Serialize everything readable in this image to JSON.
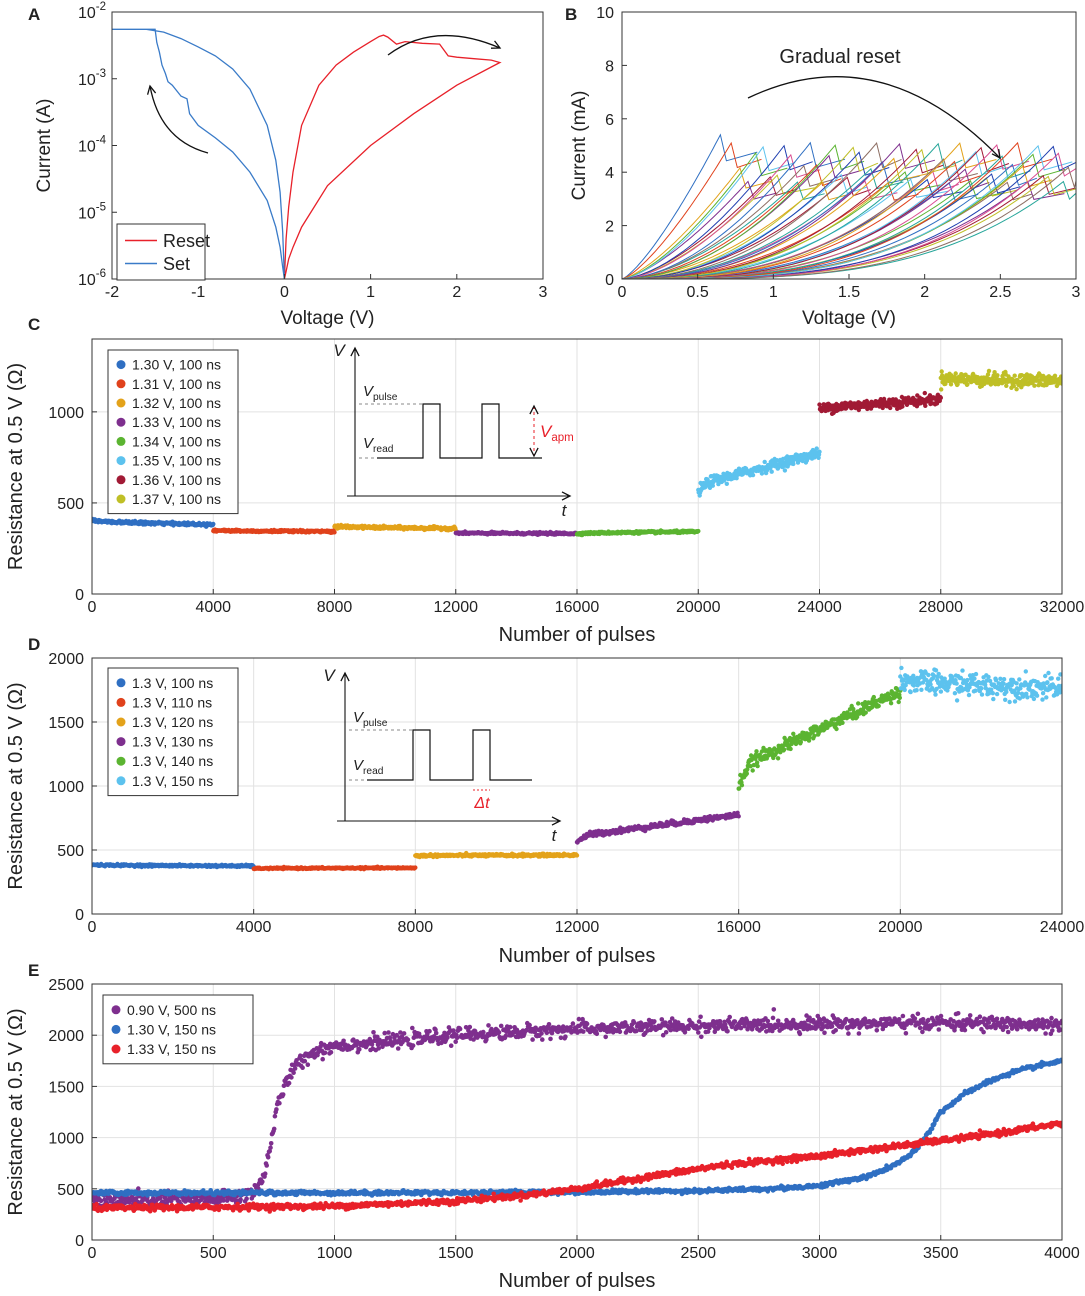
{
  "chart_data": [
    {
      "panel": "A",
      "type": "line",
      "xlabel": "Voltage (V)",
      "ylabel": "Current (A)",
      "xlim": [
        -2,
        3
      ],
      "ylim": [
        1e-06,
        0.01
      ],
      "yscale": "log",
      "xticks": [
        -2,
        -1,
        0,
        1,
        2,
        3
      ],
      "yticks": [
        1e-06,
        1e-05,
        0.0001,
        0.001,
        0.01
      ],
      "ytick_labels": [
        {
          "base": "10",
          "exp": "-6"
        },
        {
          "base": "10",
          "exp": "-5"
        },
        {
          "base": "10",
          "exp": "-4"
        },
        {
          "base": "10",
          "exp": "-3"
        },
        {
          "base": "10",
          "exp": "-2"
        }
      ],
      "legend": [
        {
          "name": "Reset",
          "color": "#e8212a"
        },
        {
          "name": "Set",
          "color": "#3a7bc8"
        }
      ],
      "series": [
        {
          "name": "Reset",
          "color": "#e8212a",
          "x": [
            0,
            0.02,
            0.05,
            0.1,
            0.2,
            0.4,
            0.6,
            0.8,
            1.0,
            1.1,
            1.15,
            1.2,
            1.3,
            1.4,
            1.6,
            1.8,
            1.9,
            2.0,
            2.2,
            2.4,
            2.5,
            2.4,
            2.0,
            1.5,
            1.0,
            0.5,
            0.2,
            0.1,
            0.05,
            0.02,
            0
          ],
          "y": [
            1e-06,
            4e-06,
            1.2e-05,
            4e-05,
            0.0002,
            0.0008,
            0.0016,
            0.0025,
            0.0036,
            0.0043,
            0.0045,
            0.0042,
            0.0033,
            0.0036,
            0.0034,
            0.0033,
            0.0022,
            0.0021,
            0.002,
            0.0019,
            0.00175,
            0.0015,
            0.0008,
            0.0003,
            0.0001,
            2.5e-05,
            6e-06,
            3e-06,
            2e-06,
            1.3e-06,
            1e-06
          ]
        },
        {
          "name": "Set",
          "color": "#3a7bc8",
          "x": [
            0,
            -0.02,
            -0.05,
            -0.1,
            -0.2,
            -0.4,
            -0.6,
            -0.8,
            -1.0,
            -1.1,
            -1.13,
            -1.2,
            -1.3,
            -1.35,
            -1.38,
            -1.42,
            -1.45,
            -1.48,
            -1.5,
            -1.6,
            -1.8,
            -2.0,
            -1.8,
            -1.6,
            -1.4,
            -1.2,
            -1.0,
            -0.8,
            -0.6,
            -0.4,
            -0.2,
            -0.1,
            -0.05,
            -0.02,
            0
          ],
          "y": [
            1e-06,
            1.5e-06,
            3e-06,
            6e-06,
            1.5e-05,
            4e-05,
            8e-05,
            0.00013,
            0.0002,
            0.0003,
            0.0005,
            0.00055,
            0.0008,
            0.0009,
            0.0012,
            0.0016,
            0.0025,
            0.0035,
            0.0055,
            0.0055,
            0.0055,
            0.0055,
            0.0055,
            0.0055,
            0.005,
            0.004,
            0.003,
            0.0022,
            0.0014,
            0.0007,
            0.0002,
            6e-05,
            2e-05,
            5e-06,
            1e-06
          ]
        }
      ],
      "annotations": []
    },
    {
      "panel": "B",
      "type": "line",
      "xlabel": "Voltage (V)",
      "ylabel": "Current (mA)",
      "xlim": [
        0,
        3
      ],
      "ylim": [
        0,
        10
      ],
      "xticks": [
        0,
        0.5,
        1,
        1.5,
        2,
        2.5,
        3
      ],
      "xtick_labels": [
        "0",
        "0.5",
        "1",
        "1.5",
        "2",
        "2.5",
        "3"
      ],
      "yticks": [
        0,
        2,
        4,
        6,
        8,
        10
      ],
      "ytick_labels": [
        "0",
        "2",
        "4",
        "6",
        "8",
        "10"
      ],
      "family": {
        "count": 60,
        "peak_v_first": 0.65,
        "peak_v_last": 2.95,
        "peak_i_first": 5.4,
        "peak_i_range": [
          3.6,
          5.1
        ],
        "exponent_range": [
          1.3,
          3.6
        ]
      },
      "annotations": [
        {
          "text": "Gradual reset"
        }
      ]
    },
    {
      "panel": "C",
      "type": "scatter",
      "xlabel": "Number of pulses",
      "ylabel": "Resistance at 0.5 V (Ω)",
      "xlim": [
        0,
        32000
      ],
      "ylim": [
        0,
        1400
      ],
      "xticks": [
        0,
        4000,
        8000,
        12000,
        16000,
        20000,
        24000,
        28000,
        32000
      ],
      "xtick_labels": [
        "0",
        "4000",
        "8000",
        "12000",
        "16000",
        "20000",
        "24000",
        "28000",
        "32000"
      ],
      "yticks": [
        0,
        500,
        1000
      ],
      "ytick_labels": [
        "0",
        "500",
        "1000"
      ],
      "series": [
        {
          "name": "1.30 V, 100 ns",
          "color": "#2f6fc2",
          "x_range": [
            0,
            4000
          ],
          "start": 405,
          "end": 382,
          "noise": 4
        },
        {
          "name": "1.31 V, 100 ns",
          "color": "#e0421c",
          "x_range": [
            4000,
            8000
          ],
          "start": 350,
          "end": 343,
          "noise": 3
        },
        {
          "name": "1.32 V, 100 ns",
          "color": "#e3a21a",
          "x_range": [
            8000,
            12000
          ],
          "start": 372,
          "end": 360,
          "noise": 4
        },
        {
          "name": "1.33 V, 100 ns",
          "color": "#7e2f8e",
          "x_range": [
            12000,
            16000
          ],
          "start": 335,
          "end": 332,
          "noise": 3
        },
        {
          "name": "1.34 V, 100 ns",
          "color": "#5bb431",
          "x_range": [
            16000,
            20000
          ],
          "start": 330,
          "end": 342,
          "noise": 3
        },
        {
          "name": "1.35 V, 100 ns",
          "color": "#5cc2ee",
          "x_range": [
            20000,
            24000
          ],
          "start": 560,
          "end": 775,
          "noise": 14
        },
        {
          "name": "1.36 V, 100 ns",
          "color": "#a11a35",
          "x_range": [
            24000,
            28000
          ],
          "start": 1010,
          "end": 1070,
          "noise": 14
        },
        {
          "name": "1.37 V, 100 ns",
          "color": "#bfbf26",
          "x_range": [
            28000,
            32000
          ],
          "start": 1185,
          "end": 1170,
          "noise": 18
        }
      ],
      "inset": {
        "y_label": "V",
        "x_label": "t",
        "pulse_label": "V",
        "pulse_sub": "pulse",
        "read_label": "V",
        "read_sub": "read",
        "amp_label": "V",
        "amp_sub": "apm"
      }
    },
    {
      "panel": "D",
      "type": "scatter",
      "xlabel": "Number of pulses",
      "ylabel": "Resistance at 0.5 V (Ω)",
      "xlim": [
        0,
        24000
      ],
      "ylim": [
        0,
        2000
      ],
      "xticks": [
        0,
        4000,
        8000,
        12000,
        16000,
        20000,
        24000
      ],
      "xtick_labels": [
        "0",
        "4000",
        "8000",
        "12000",
        "16000",
        "20000",
        "24000"
      ],
      "yticks": [
        0,
        500,
        1000,
        1500,
        2000
      ],
      "ytick_labels": [
        "0",
        "500",
        "1000",
        "1500",
        "2000"
      ],
      "series": [
        {
          "name": "1.3 V, 100 ns",
          "color": "#2f6fc2",
          "x_range": [
            0,
            4000
          ],
          "start": 385,
          "end": 375,
          "noise": 4
        },
        {
          "name": "1.3 V, 110 ns",
          "color": "#e0421c",
          "x_range": [
            4000,
            8000
          ],
          "start": 355,
          "end": 360,
          "noise": 3
        },
        {
          "name": "1.3 V, 120 ns",
          "color": "#e3a21a",
          "x_range": [
            8000,
            12000
          ],
          "start": 455,
          "end": 460,
          "noise": 5
        },
        {
          "name": "1.3 V, 130 ns",
          "color": "#7e2f8e",
          "x_range": [
            12000,
            16000
          ],
          "start": 570,
          "end": 775,
          "noise": 10
        },
        {
          "name": "1.3 V, 140 ns",
          "color": "#5bb431",
          "x_range": [
            16000,
            20000
          ],
          "start": 1010,
          "end": 1740,
          "noise": 25
        },
        {
          "name": "1.3 V, 150 ns",
          "color": "#5cc2ee",
          "x_range": [
            20000,
            24000
          ],
          "start": 1830,
          "end": 1760,
          "noise": 45
        }
      ],
      "inset": {
        "y_label": "V",
        "x_label": "t",
        "pulse_label": "V",
        "pulse_sub": "pulse",
        "read_label": "V",
        "read_sub": "read",
        "dt_label": "Δt"
      }
    },
    {
      "panel": "E",
      "type": "scatter",
      "xlabel": "Number of pulses",
      "ylabel": "Resistance at 0.5 V (Ω)",
      "xlim": [
        0,
        4000
      ],
      "ylim": [
        0,
        2500
      ],
      "xticks": [
        0,
        500,
        1000,
        1500,
        2000,
        2500,
        3000,
        3500,
        4000
      ],
      "xtick_labels": [
        "0",
        "500",
        "1000",
        "1500",
        "2000",
        "2500",
        "3000",
        "3500",
        "4000"
      ],
      "yticks": [
        0,
        500,
        1000,
        1500,
        2000,
        2500
      ],
      "ytick_labels": [
        "0",
        "500",
        "1000",
        "1500",
        "2000",
        "2500"
      ],
      "series": [
        {
          "name": "0.90 V, 500 ns",
          "color": "#7e2f8e",
          "noise": 35,
          "x": [
            0,
            300,
            500,
            600,
            650,
            700,
            730,
            760,
            800,
            850,
            900,
            1000,
            1200,
            1500,
            2000,
            2500,
            3000,
            3500,
            3800,
            4000
          ],
          "y": [
            380,
            390,
            400,
            420,
            450,
            560,
            850,
            1250,
            1550,
            1720,
            1820,
            1900,
            1930,
            2000,
            2060,
            2090,
            2110,
            2120,
            2110,
            2080
          ]
        },
        {
          "name": "1.30 V, 150 ns",
          "color": "#2f6fc2",
          "noise": 10,
          "x": [
            0,
            500,
            1000,
            1500,
            2000,
            2500,
            2800,
            3000,
            3200,
            3300,
            3350,
            3400,
            3450,
            3500,
            3600,
            3700,
            3800,
            3900,
            4000
          ],
          "y": [
            460,
            460,
            460,
            462,
            468,
            480,
            500,
            530,
            620,
            720,
            790,
            880,
            1050,
            1250,
            1430,
            1550,
            1640,
            1700,
            1750
          ]
        },
        {
          "name": "1.33 V, 150 ns",
          "color": "#e8212a",
          "noise": 14,
          "x": [
            0,
            500,
            1000,
            1500,
            1800,
            2000,
            2300,
            2600,
            3000,
            3400,
            3700,
            4000
          ],
          "y": [
            310,
            320,
            330,
            380,
            440,
            500,
            620,
            730,
            820,
            940,
            1030,
            1140
          ]
        }
      ]
    }
  ],
  "panels": {
    "A": {
      "letter": "A",
      "arrow_a": "arrow",
      "arrow_b": "arrow"
    },
    "B": {
      "letter": "B"
    },
    "C": {
      "letter": "C"
    },
    "D": {
      "letter": "D"
    },
    "E": {
      "letter": "E"
    }
  }
}
